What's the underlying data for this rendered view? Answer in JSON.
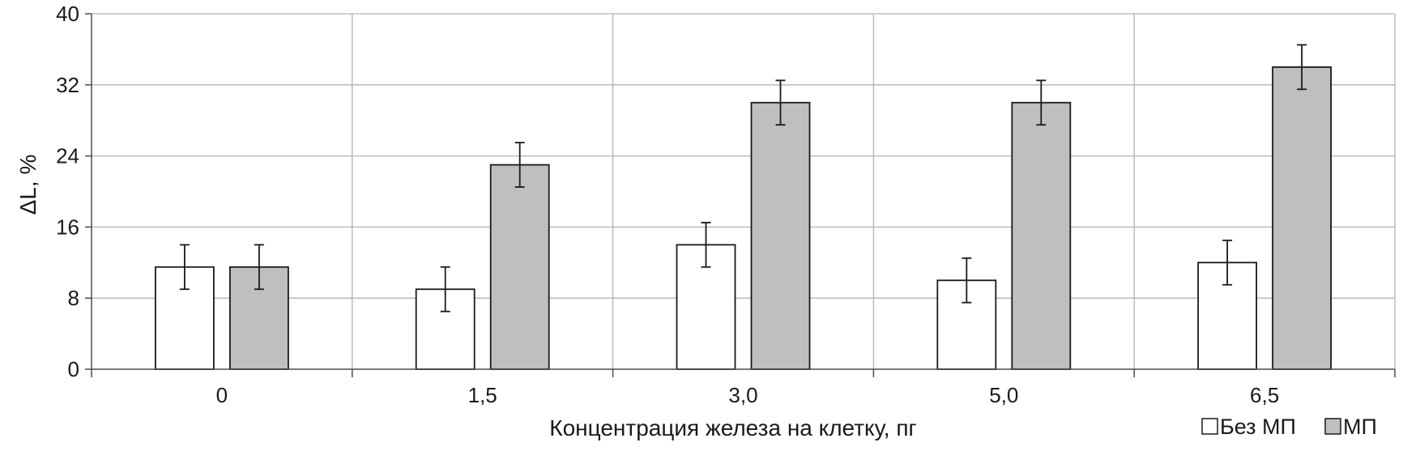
{
  "chart_data": {
    "type": "bar",
    "title": "",
    "xlabel": "Концентрация железа на клетку, пг",
    "ylabel": "ΔL, %",
    "categories": [
      "0",
      "1,5",
      "3,0",
      "5,0",
      "6,5"
    ],
    "series": [
      {
        "name": "Без МП",
        "color": "#ffffff",
        "values": [
          11.5,
          9,
          14,
          10,
          12
        ],
        "errors": [
          2.5,
          2.5,
          2.5,
          2.5,
          2.5
        ]
      },
      {
        "name": "МП",
        "color": "#bfbfbf",
        "values": [
          11.5,
          23,
          30,
          30,
          34
        ],
        "errors": [
          2.5,
          2.5,
          2.5,
          2.5,
          2.5
        ]
      }
    ],
    "ylim": [
      0,
      40
    ],
    "yticks": [
      0,
      8,
      16,
      24,
      32,
      40
    ],
    "grid": true,
    "legend_position": "bottom-right"
  }
}
